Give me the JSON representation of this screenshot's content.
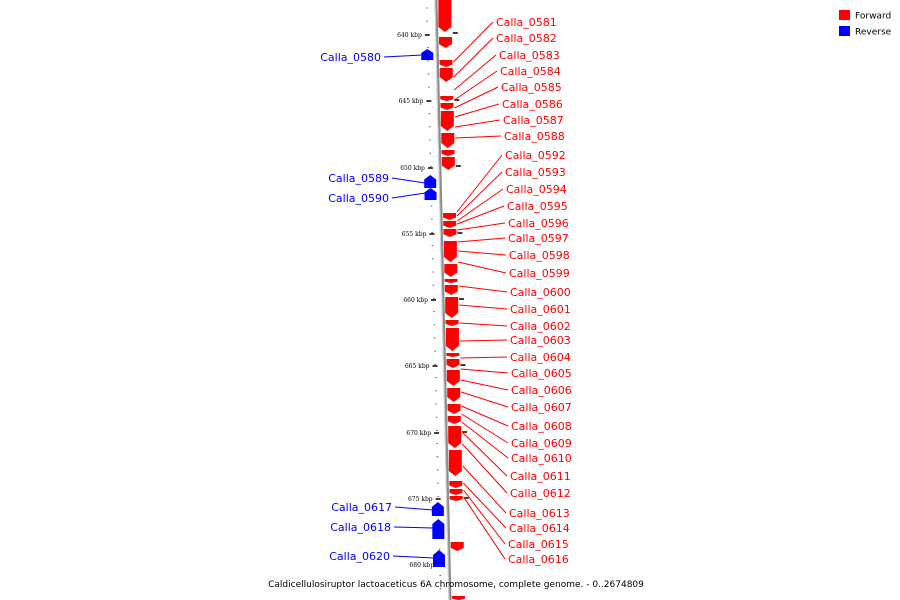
{
  "caption": "Caldicellulosiruptor lactoaceticus 6A chromosome, complete genome. - 0..2674809",
  "legend": [
    {
      "label": "Forward",
      "color": "#ff0000"
    },
    {
      "label": "Reverse",
      "color": "#0000ff"
    }
  ],
  "colors": {
    "forward": "#ff0000",
    "reverse": "#0000ff",
    "backbone": "#8c8c8c"
  },
  "kbp_ticks": [
    "640 kbp",
    "645 kbp",
    "650 kbp",
    "655 kbp",
    "660 kbp",
    "665 kbp",
    "670 kbp",
    "675 kbp",
    "680 kbp"
  ],
  "forward_genes": [
    "Calla_0581",
    "Calla_0582",
    "Calla_0583",
    "Calla_0584",
    "Calla_0585",
    "Calla_0586",
    "Calla_0587",
    "Calla_0588",
    "Calla_0592",
    "Calla_0593",
    "Calla_0594",
    "Calla_0595",
    "Calla_0596",
    "Calla_0597",
    "Calla_0598",
    "Calla_0599",
    "Calla_0600",
    "Calla_0601",
    "Calla_0602",
    "Calla_0603",
    "Calla_0604",
    "Calla_0605",
    "Calla_0606",
    "Calla_0607",
    "Calla_0608",
    "Calla_0609",
    "Calla_0610",
    "Calla_0611",
    "Calla_0612",
    "Calla_0613",
    "Calla_0614",
    "Calla_0615",
    "Calla_0616"
  ],
  "reverse_genes": [
    "Calla_0580",
    "Calla_0589",
    "Calla_0590",
    "Calla_0617",
    "Calla_0618",
    "Calla_0620"
  ]
}
